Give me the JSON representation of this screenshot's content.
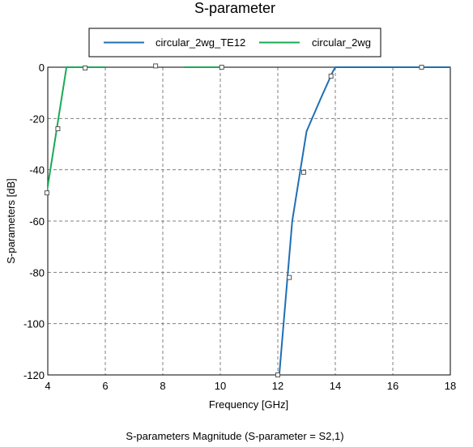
{
  "chart_data": {
    "type": "line",
    "title": "S-parameter",
    "xlabel": "Frequency [GHz]",
    "ylabel": "S-parameters [dB]",
    "caption": "S-parameters Magnitude (S-parameter = S2,1)",
    "xlim": [
      4,
      18
    ],
    "ylim": [
      -120,
      0
    ],
    "xticks": [
      4,
      6,
      8,
      10,
      12,
      14,
      16,
      18
    ],
    "yticks": [
      0,
      -20,
      -40,
      -60,
      -80,
      -100,
      -120
    ],
    "grid": true,
    "legend_position": "top-center",
    "series": [
      {
        "name": "circular_2wg_TE12",
        "color": "#1f6fb3",
        "x": [
          12.05,
          12.5,
          13.0,
          13.5,
          13.9,
          14.0,
          15.0,
          16.0,
          17.0,
          18.0
        ],
        "y": [
          -120,
          -60,
          -25,
          -12,
          -2,
          0,
          0,
          0,
          0,
          0
        ],
        "markers": [
          {
            "x": 12.0,
            "y": -120
          },
          {
            "x": 12.4,
            "y": -82
          },
          {
            "x": 12.9,
            "y": -41
          },
          {
            "x": 13.85,
            "y": -3.5
          },
          {
            "x": 17.0,
            "y": 0
          }
        ]
      },
      {
        "name": "circular_2wg",
        "color": "#1aaa55",
        "x": [
          3.95,
          4.3,
          4.65,
          5.0,
          6.0
        ],
        "y": [
          -50,
          -25,
          0,
          0,
          0
        ],
        "segments": [
          {
            "x": [
              8.75,
              10.05
            ],
            "y": [
              0,
              0
            ]
          }
        ],
        "markers": [
          {
            "x": 3.97,
            "y": -49
          },
          {
            "x": 4.35,
            "y": -24
          },
          {
            "x": 5.3,
            "y": -0.3
          },
          {
            "x": 7.75,
            "y": 0.5
          },
          {
            "x": 10.05,
            "y": 0
          }
        ]
      }
    ]
  }
}
